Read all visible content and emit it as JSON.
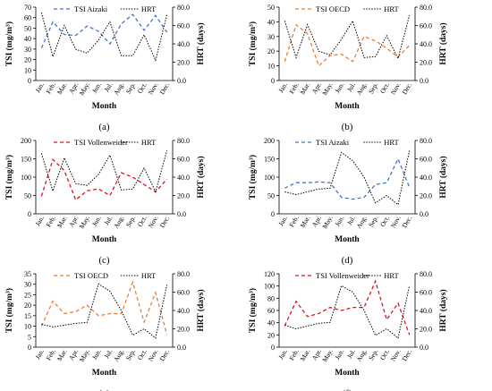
{
  "months": [
    "Jan.",
    "Feb.",
    "Mar.",
    "Apr.",
    "May.",
    "Jun.",
    "Jul.",
    "Aug.",
    "Sep.",
    "Oct.",
    "Nov.",
    "Dec."
  ],
  "colors": {
    "tsi": [
      "#4472C4",
      "#ED7D31",
      "#E0111A",
      "#4472C4",
      "#ED7D31",
      "#E0111A"
    ],
    "hrt": "#000000"
  },
  "chart_data": [
    {
      "panel": "(a)",
      "type": "line",
      "xlabel": "Month",
      "ylabel_html": "TSI (mg/m³)",
      "y2label": "HRT (days)",
      "ylim": [
        0,
        70
      ],
      "yticks": [
        0,
        10,
        20,
        30,
        40,
        50,
        60,
        70
      ],
      "y2lim": [
        0,
        80
      ],
      "y2ticks": [
        "0.0",
        "20.0",
        "40.0",
        "60.0",
        "80.0"
      ],
      "series": [
        {
          "name": "TSI Aizaki",
          "axis": "left",
          "values": [
            31,
            56,
            44,
            43,
            52,
            47,
            35,
            54,
            63,
            48,
            62,
            46
          ]
        },
        {
          "name": "HRT",
          "axis": "right",
          "values": [
            74,
            26,
            60,
            34,
            30,
            44,
            64,
            27,
            27,
            50,
            22,
            72
          ]
        }
      ]
    },
    {
      "panel": "(b)",
      "type": "line",
      "xlabel": "Month",
      "ylabel_html": "TSI (mg/m³)",
      "y2label": "HRT (days)",
      "ylim": [
        0,
        50
      ],
      "yticks": [
        0,
        10,
        20,
        30,
        40,
        50
      ],
      "y2lim": [
        0,
        80
      ],
      "y2ticks": [
        "0.0",
        "20.0",
        "40.0",
        "60.0",
        "80.0"
      ],
      "series": [
        {
          "name": "TSI OECD",
          "axis": "left",
          "values": [
            13,
            38,
            32,
            10,
            17,
            18,
            13,
            30,
            27,
            22,
            16,
            24
          ]
        },
        {
          "name": "HRT",
          "axis": "right",
          "values": [
            65,
            25,
            61,
            32,
            28,
            45,
            65,
            25,
            26,
            49,
            24,
            71
          ]
        }
      ]
    },
    {
      "panel": "(c)",
      "type": "line",
      "xlabel": "Month",
      "ylabel_html": "TSI (mg/m³)",
      "y2label": "HRT (days)",
      "ylim": [
        0,
        200
      ],
      "yticks": [
        0,
        50,
        100,
        150,
        200
      ],
      "y2lim": [
        0,
        80
      ],
      "y2ticks": [
        "0.0",
        "20.0",
        "40.0",
        "60.0",
        "80.0"
      ],
      "series": [
        {
          "name": "TSI Vollenweider",
          "axis": "left",
          "values": [
            48,
            148,
            118,
            38,
            63,
            68,
            50,
            112,
            100,
            80,
            60,
            95
          ]
        },
        {
          "name": "HRT",
          "axis": "right",
          "values": [
            66,
            25,
            61,
            33,
            31,
            43,
            64,
            26,
            27,
            50,
            24,
            69
          ]
        }
      ]
    },
    {
      "panel": "(d)",
      "type": "line",
      "xlabel": "Month",
      "ylabel_html": "TSI (mg/m³)",
      "y2label": "HRT (days)",
      "ylim": [
        0,
        200
      ],
      "yticks": [
        0,
        50,
        100,
        150,
        200
      ],
      "y2lim": [
        0,
        80
      ],
      "y2ticks": [
        "0.0",
        "20.0",
        "40.0",
        "60.0",
        "80.0"
      ],
      "series": [
        {
          "name": "TSI Aizaki",
          "axis": "left",
          "values": [
            70,
            85,
            85,
            87,
            85,
            45,
            40,
            45,
            80,
            85,
            150,
            72
          ]
        },
        {
          "name": "HRT",
          "axis": "right",
          "values": [
            24,
            21,
            24,
            27,
            28,
            67,
            58,
            40,
            12,
            20,
            10,
            69
          ]
        }
      ]
    },
    {
      "panel": "(e)",
      "type": "line",
      "xlabel": "Month",
      "ylabel_html": "TSI (mg/m³)",
      "y2label": "HRT (days)",
      "ylim": [
        0,
        35
      ],
      "yticks": [
        0,
        5,
        10,
        15,
        20,
        25,
        30,
        35
      ],
      "y2lim": [
        0,
        80
      ],
      "y2ticks": [
        "0.0",
        "20.0",
        "40.0",
        "60.0",
        "80.0"
      ],
      "series": [
        {
          "name": "TSI OECD",
          "axis": "left",
          "values": [
            10,
            22,
            16,
            17,
            20,
            15,
            16,
            16,
            31,
            12,
            26,
            6
          ]
        },
        {
          "name": "HRT",
          "axis": "right",
          "values": [
            25,
            22,
            24,
            26,
            27,
            69,
            61,
            40,
            13,
            20,
            10,
            68
          ]
        }
      ]
    },
    {
      "panel": "(f)",
      "type": "line",
      "xlabel": "Month",
      "ylabel_html": "TSI (mg/m³)",
      "y2label": "HRT (days)",
      "ylim": [
        0,
        120
      ],
      "yticks": [
        0,
        20,
        40,
        60,
        80,
        100,
        120
      ],
      "y2lim": [
        0,
        80
      ],
      "y2ticks": [
        "0.0",
        "20.0",
        "40.0",
        "60.0",
        "80.0"
      ],
      "series": [
        {
          "name": "TSI Vollenweider",
          "axis": "left",
          "values": [
            35,
            75,
            50,
            55,
            65,
            60,
            65,
            65,
            108,
            45,
            72,
            20
          ]
        },
        {
          "name": "HRT",
          "axis": "right",
          "values": [
            24,
            20,
            23,
            26,
            27,
            67,
            60,
            40,
            13,
            20,
            10,
            67
          ]
        }
      ]
    }
  ]
}
